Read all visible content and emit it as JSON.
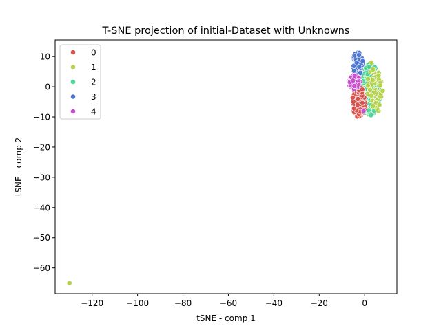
{
  "chart_data": {
    "type": "scatter",
    "title": "T-SNE projection of initial-Dataset with Unknowns",
    "xlabel": "tSNE - comp 1",
    "ylabel": "tSNE - comp 2",
    "xlim": [
      -136.3,
      14.2
    ],
    "ylim": [
      -68.5,
      15.5
    ],
    "xticks": [
      -120,
      -100,
      -80,
      -60,
      -40,
      -20,
      0
    ],
    "yticks": [
      10,
      0,
      -10,
      -20,
      -30,
      -40,
      -50,
      -60
    ],
    "xtick_labels": [
      "−120",
      "−100",
      "−80",
      "−60",
      "−40",
      "−20",
      "0"
    ],
    "ytick_labels": [
      "10",
      "0",
      "−10",
      "−20",
      "−30",
      "−40",
      "−50",
      "−60"
    ],
    "legend_position": "top-left",
    "grid": false,
    "series": [
      {
        "name": "0",
        "color": "#d9534f",
        "clusters": [
          {
            "cx": -2.5,
            "cy": -5.0,
            "rx": 3.0,
            "ry": 5.0,
            "n": 140
          }
        ]
      },
      {
        "name": "1",
        "color": "#b5d34f",
        "clusters": [
          {
            "cx": 4.5,
            "cy": -1.0,
            "rx": 3.5,
            "ry": 8.0,
            "n": 60
          }
        ],
        "points": [
          [
            -130,
            -65
          ],
          [
            6.5,
            -6.0
          ],
          [
            3.0,
            8.0
          ]
        ]
      },
      {
        "name": "2",
        "color": "#4dd694",
        "clusters": [
          {
            "cx": 2.5,
            "cy": -1.0,
            "rx": 4.5,
            "ry": 8.5,
            "n": 520
          }
        ]
      },
      {
        "name": "3",
        "color": "#4f77d4",
        "clusters": [
          {
            "cx": -3.0,
            "cy": 7.5,
            "rx": 2.2,
            "ry": 4.0,
            "n": 60
          }
        ]
      },
      {
        "name": "4",
        "color": "#c84fd1",
        "clusters": [
          {
            "cx": -4.5,
            "cy": 1.5,
            "rx": 2.5,
            "ry": 2.3,
            "n": 70
          }
        ],
        "points": [
          [
            -0.5,
            -8.0
          ]
        ]
      }
    ]
  }
}
